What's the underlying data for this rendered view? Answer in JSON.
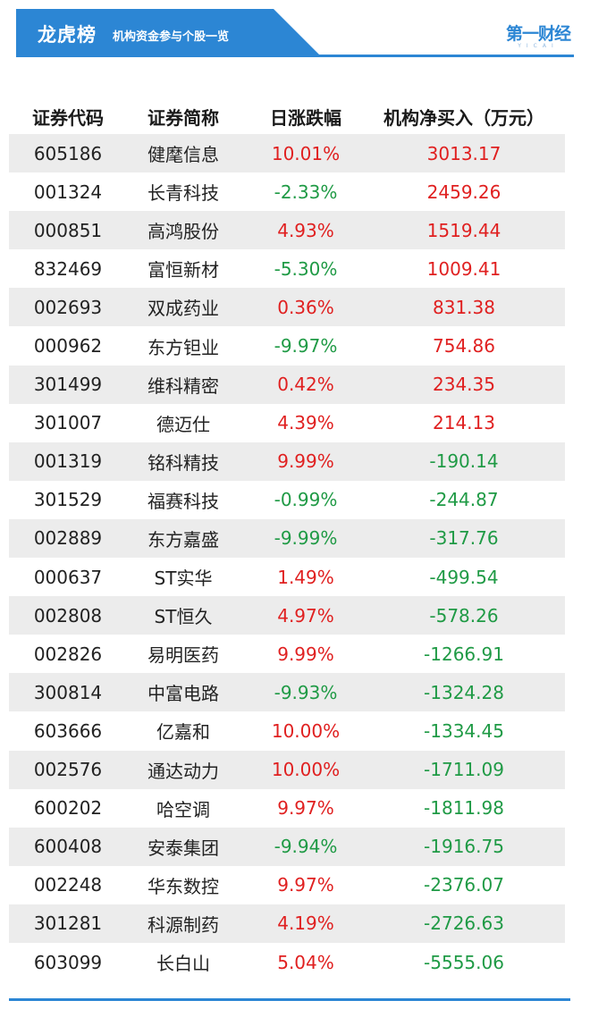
{
  "banner": {
    "title": "龙虎榜",
    "subtitle": "机构资金参与个股一览",
    "logo_text": "第一财经",
    "logo_sub": "YICAI",
    "color": "#2c86d4"
  },
  "table": {
    "headers": [
      "证券代码",
      "证券简称",
      "日涨跌幅",
      "机构净买入（万元）"
    ],
    "rows": [
      {
        "code": "605186",
        "name": "健麾信息",
        "change": "10.01%",
        "net": "3013.17"
      },
      {
        "code": "001324",
        "name": "长青科技",
        "change": "-2.33%",
        "net": "2459.26"
      },
      {
        "code": "000851",
        "name": "高鸿股份",
        "change": "4.93%",
        "net": "1519.44"
      },
      {
        "code": "832469",
        "name": "富恒新材",
        "change": "-5.30%",
        "net": "1009.41"
      },
      {
        "code": "002693",
        "name": "双成药业",
        "change": "0.36%",
        "net": "831.38"
      },
      {
        "code": "000962",
        "name": "东方钽业",
        "change": "-9.97%",
        "net": "754.86"
      },
      {
        "code": "301499",
        "name": "维科精密",
        "change": "0.42%",
        "net": "234.35"
      },
      {
        "code": "301007",
        "name": "德迈仕",
        "change": "4.39%",
        "net": "214.13"
      },
      {
        "code": "001319",
        "name": "铭科精技",
        "change": "9.99%",
        "net": "-190.14"
      },
      {
        "code": "301529",
        "name": "福赛科技",
        "change": "-0.99%",
        "net": "-244.87"
      },
      {
        "code": "002889",
        "name": "东方嘉盛",
        "change": "-9.99%",
        "net": "-317.76"
      },
      {
        "code": "000637",
        "name": "ST实华",
        "change": "1.49%",
        "net": "-499.54"
      },
      {
        "code": "002808",
        "name": "ST恒久",
        "change": "4.97%",
        "net": "-578.26"
      },
      {
        "code": "002826",
        "name": "易明医药",
        "change": "9.99%",
        "net": "-1266.91"
      },
      {
        "code": "300814",
        "name": "中富电路",
        "change": "-9.93%",
        "net": "-1324.28"
      },
      {
        "code": "603666",
        "name": "亿嘉和",
        "change": "10.00%",
        "net": "-1334.45"
      },
      {
        "code": "002576",
        "name": "通达动力",
        "change": "10.00%",
        "net": "-1711.09"
      },
      {
        "code": "600202",
        "name": "哈空调",
        "change": "9.97%",
        "net": "-1811.98"
      },
      {
        "code": "600408",
        "name": "安泰集团",
        "change": "-9.94%",
        "net": "-1916.75"
      },
      {
        "code": "002248",
        "name": "华东数控",
        "change": "9.97%",
        "net": "-2376.07"
      },
      {
        "code": "301281",
        "name": "科源制药",
        "change": "4.19%",
        "net": "-2726.63"
      },
      {
        "code": "603099",
        "name": "长白山",
        "change": "5.04%",
        "net": "-5555.06"
      }
    ]
  },
  "colors": {
    "up": "#e02020",
    "down": "#1f9a45",
    "stripe": "#ececec"
  }
}
